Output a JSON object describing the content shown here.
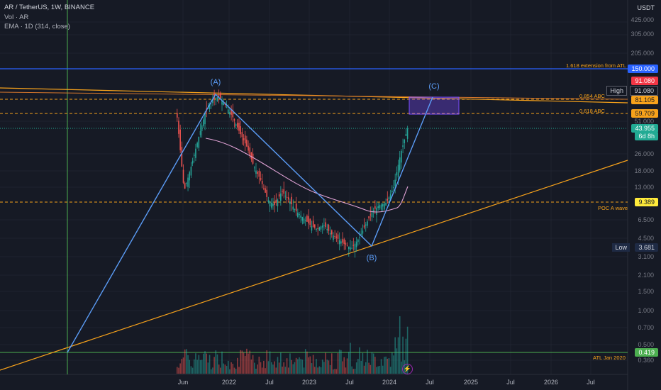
{
  "header": {
    "symbol_line": "AR / TetherUS, 1W, BINANCE",
    "volume_line": "Vol · AR",
    "ema_line": "EMA · 1D (314, close)"
  },
  "currency": "USDT",
  "y_axis_labels": [
    "425.000",
    "305.000",
    "205.000",
    "51.000",
    "26.000",
    "18.000",
    "13.000",
    "6.500",
    "4.500",
    "3.100",
    "2.100",
    "1.500",
    "1.000",
    "0.700",
    "0.500",
    "0.360"
  ],
  "x_axis_labels": [
    "Jun",
    "2022",
    "Jul",
    "2023",
    "Jul",
    "2024",
    "Jul",
    "2025",
    "Jul",
    "2026",
    "Jul"
  ],
  "price_tags": {
    "level_150": "150.000",
    "high_label": "High",
    "high_value": "91.080",
    "ath": "91.080",
    "fib_0854": "81.105",
    "fib_0618": "59.709",
    "last_price": "43.955",
    "countdown": "6d 8h",
    "poc": "9.389",
    "low_label": "Low",
    "low_value": "3.681",
    "atl": "0.419"
  },
  "annotations": {
    "ext_1618": "1.618 extension from ATL",
    "fib_0854": "0.854 ABC",
    "fib_0618": "0.618 ABC",
    "poc": "POC A wave",
    "atl": "ATL Jan 2020"
  },
  "waves": {
    "a": "(A)",
    "b": "(B)",
    "c": "(C)"
  },
  "icons": {
    "bolt": "lightning-icon"
  },
  "colors": {
    "background": "#161a25",
    "up": "#26a69a",
    "down": "#ef5350",
    "blue_line": "#2962ff",
    "orange": "#f7a21b",
    "pattern": "#5b9cf6",
    "ema": "#e1a3d6",
    "last": "#22ab94"
  },
  "chart_data": {
    "type": "candlestick",
    "scale": "log",
    "ylim": [
      0.3,
      600
    ],
    "series": [
      {
        "name": "AR / TetherUS, 1W, BINANCE",
        "approx_closes": [
          55,
          12,
          20,
          35,
          60,
          80,
          85,
          70,
          55,
          40,
          30,
          20,
          15,
          10,
          9,
          12,
          10,
          8,
          7,
          6,
          5.5,
          6,
          5,
          4.5,
          4,
          3.7,
          4.5,
          6,
          8,
          9,
          9.5,
          13,
          26,
          43.955
        ]
      }
    ],
    "levels": [
      {
        "label": "1.618 extension from ATL",
        "value": 150.0
      },
      {
        "label": "0.854 ABC",
        "value": 81.105
      },
      {
        "label": "0.618 ABC",
        "value": 59.709
      },
      {
        "label": "POC A wave",
        "value": 9.389
      },
      {
        "label": "ATL Jan 2020",
        "value": 0.419
      }
    ],
    "high": 91.08,
    "low": 3.681,
    "last": 43.955
  }
}
